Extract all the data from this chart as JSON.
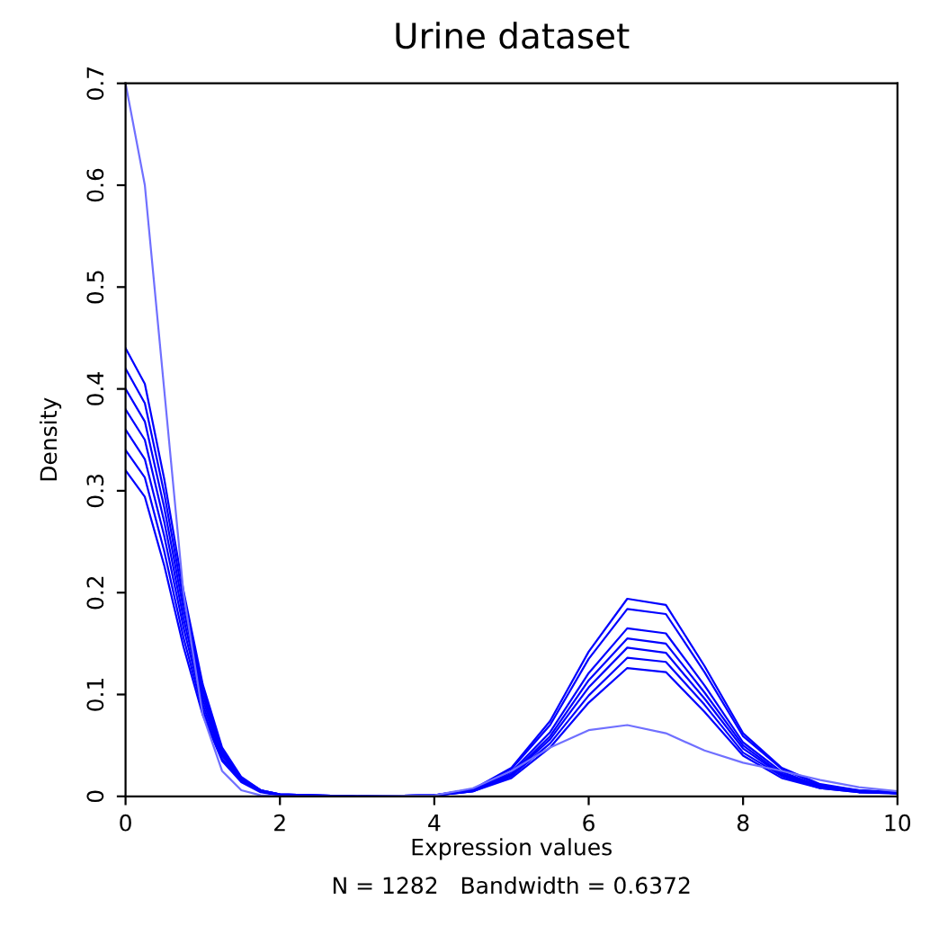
{
  "chart_data": {
    "type": "line",
    "title": "Urine dataset",
    "xlabel": "Expression values",
    "ylabel": "Density",
    "annotations": [
      "N = 1282   Bandwidth = 0.6372"
    ],
    "x": [
      0,
      0.25,
      0.5,
      0.75,
      1,
      1.25,
      1.5,
      1.75,
      2,
      3,
      4,
      4.5,
      5,
      5.5,
      6,
      6.5,
      7,
      7.5,
      8,
      8.5,
      9,
      9.5,
      10
    ],
    "series": [
      {
        "color": "#0000ff",
        "values": [
          0.44,
          0.405,
          0.312,
          0.202,
          0.11,
          0.048,
          0.019,
          0.006,
          0.002,
          0,
          0.001,
          0.005,
          0.021,
          0.056,
          0.107,
          0.146,
          0.141,
          0.096,
          0.047,
          0.021,
          0.009,
          0.005,
          0.003
        ]
      },
      {
        "color": "#0000ff",
        "values": [
          0.42,
          0.386,
          0.298,
          0.193,
          0.105,
          0.046,
          0.018,
          0.006,
          0.002,
          0,
          0.001,
          0.005,
          0.018,
          0.048,
          0.092,
          0.126,
          0.122,
          0.083,
          0.04,
          0.018,
          0.008,
          0.004,
          0.003
        ]
      },
      {
        "color": "#0000ff",
        "values": [
          0.4,
          0.368,
          0.284,
          0.184,
          0.1,
          0.044,
          0.018,
          0.006,
          0.002,
          0,
          0.001,
          0.006,
          0.024,
          0.063,
          0.121,
          0.165,
          0.16,
          0.109,
          0.053,
          0.024,
          0.01,
          0.005,
          0.003
        ]
      },
      {
        "color": "#0000ff",
        "values": [
          0.38,
          0.35,
          0.27,
          0.175,
          0.095,
          0.042,
          0.017,
          0.005,
          0.002,
          0,
          0.001,
          0.007,
          0.028,
          0.074,
          0.142,
          0.194,
          0.188,
          0.128,
          0.062,
          0.028,
          0.012,
          0.006,
          0.004
        ]
      },
      {
        "color": "#0000ff",
        "values": [
          0.36,
          0.331,
          0.256,
          0.166,
          0.09,
          0.04,
          0.016,
          0.005,
          0.001,
          0,
          0.001,
          0.006,
          0.022,
          0.059,
          0.114,
          0.155,
          0.15,
          0.102,
          0.05,
          0.022,
          0.01,
          0.005,
          0.003
        ]
      },
      {
        "color": "#0000ff",
        "values": [
          0.34,
          0.313,
          0.241,
          0.156,
          0.085,
          0.037,
          0.015,
          0.005,
          0.001,
          0,
          0.001,
          0.007,
          0.027,
          0.07,
          0.135,
          0.184,
          0.179,
          0.122,
          0.059,
          0.027,
          0.011,
          0.006,
          0.004
        ]
      },
      {
        "color": "#0000ff",
        "values": [
          0.32,
          0.294,
          0.227,
          0.147,
          0.08,
          0.035,
          0.014,
          0.004,
          0.001,
          0,
          0.001,
          0.005,
          0.02,
          0.052,
          0.099,
          0.136,
          0.132,
          0.09,
          0.043,
          0.02,
          0.008,
          0.004,
          0.003
        ]
      },
      {
        "color": "#7070ff",
        "values": [
          0.7,
          0.6,
          0.4,
          0.2,
          0.08,
          0.025,
          0.006,
          0.001,
          0,
          0,
          0.001,
          0.008,
          0.025,
          0.048,
          0.065,
          0.07,
          0.062,
          0.045,
          0.033,
          0.025,
          0.016,
          0.009,
          0.005
        ]
      }
    ],
    "xlim": [
      0,
      10
    ],
    "ylim": [
      0,
      0.7
    ],
    "xticks": [
      0,
      2,
      4,
      6,
      8,
      10
    ],
    "yticks": [
      0,
      0.1,
      0.2,
      0.3,
      0.4,
      0.5,
      0.6,
      0.7
    ],
    "grid": false,
    "marker": "none",
    "line_style": "solid"
  }
}
